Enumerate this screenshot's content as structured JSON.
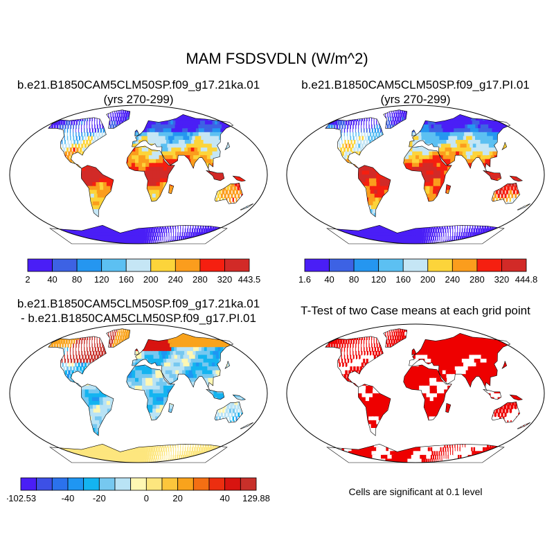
{
  "figure": {
    "title": "MAM FSDSVDLN (W/m^2)"
  },
  "panels": [
    {
      "id": "case",
      "title_line1": "b.e21.B1850CAM5CLM50SP.f09_g17.21ka.01",
      "title_line2": "(yrs 270-299)",
      "colorbar": {
        "labels": [
          "2",
          "40",
          "80",
          "120",
          "160",
          "200",
          "240",
          "280",
          "320",
          "443.5"
        ],
        "colors": [
          "#4a1ef6",
          "#3d62e4",
          "#2596f0",
          "#5cc0f2",
          "#c5e6f5",
          "#fcd43a",
          "#fb9d1d",
          "#f51f10",
          "#d22a27"
        ]
      }
    },
    {
      "id": "control",
      "title_line1": "b.e21.B1850CAM5CLM50SP.f09_g17.PI.01",
      "title_line2": "(yrs 270-299)",
      "colorbar": {
        "labels": [
          "1.6",
          "40",
          "80",
          "120",
          "160",
          "200",
          "240",
          "280",
          "320",
          "444.8"
        ],
        "colors": [
          "#4a1ef6",
          "#3d62e4",
          "#2596f0",
          "#5cc0f2",
          "#c5e6f5",
          "#fcd43a",
          "#fb9d1d",
          "#f51f10",
          "#d22a27"
        ]
      }
    },
    {
      "id": "difference",
      "title_line1": "b.e21.B1850CAM5CLM50SP.f09_g17.21ka.01",
      "title_line2": "- b.e21.B1850CAM5CLM50SP.f09_g17.PI.01",
      "colorbar": {
        "labels": [
          "-102.53",
          "-40",
          "-20",
          "0",
          "20",
          "40",
          "129.88"
        ],
        "colors": [
          "#4a1ef6",
          "#3d50e6",
          "#2b72ec",
          "#1f96f2",
          "#14b4f0",
          "#76c8f0",
          "#b9e3f5",
          "#fff7b3",
          "#fde67e",
          "#fcc63c",
          "#f9a31c",
          "#f46f13",
          "#ec2e10",
          "#d81410",
          "#c8302a"
        ]
      }
    },
    {
      "id": "ttest",
      "title_line1": "T-Test of two Case means at each grid point",
      "note": "Cells are significant at 0.1 level",
      "sig_color": "#ee0000"
    }
  ],
  "chart_data": [
    {
      "type": "heatmap",
      "title": "b.e21.B1850CAM5CLM50SP.f09_g17.21ka.01 (yrs 270-299)",
      "projection": "Robinson, global",
      "levels": [
        2,
        40,
        80,
        120,
        160,
        200,
        240,
        280,
        320,
        443.5
      ]
    },
    {
      "type": "heatmap",
      "title": "b.e21.B1850CAM5CLM50SP.f09_g17.PI.01 (yrs 270-299)",
      "projection": "Robinson, global",
      "levels": [
        1.6,
        40,
        80,
        120,
        160,
        200,
        240,
        280,
        320,
        444.8
      ]
    },
    {
      "type": "heatmap",
      "title": "b.e21.B1850CAM5CLM50SP.f09_g17.21ka.01 - b.e21.B1850CAM5CLM50SP.f09_g17.PI.01",
      "projection": "Robinson, global",
      "levels": [
        -102.53,
        -40,
        -20,
        0,
        20,
        40,
        129.88
      ]
    },
    {
      "type": "heatmap",
      "title": "T-Test of two Case means at each grid point",
      "projection": "Robinson, global",
      "significance_level": 0.1
    }
  ]
}
